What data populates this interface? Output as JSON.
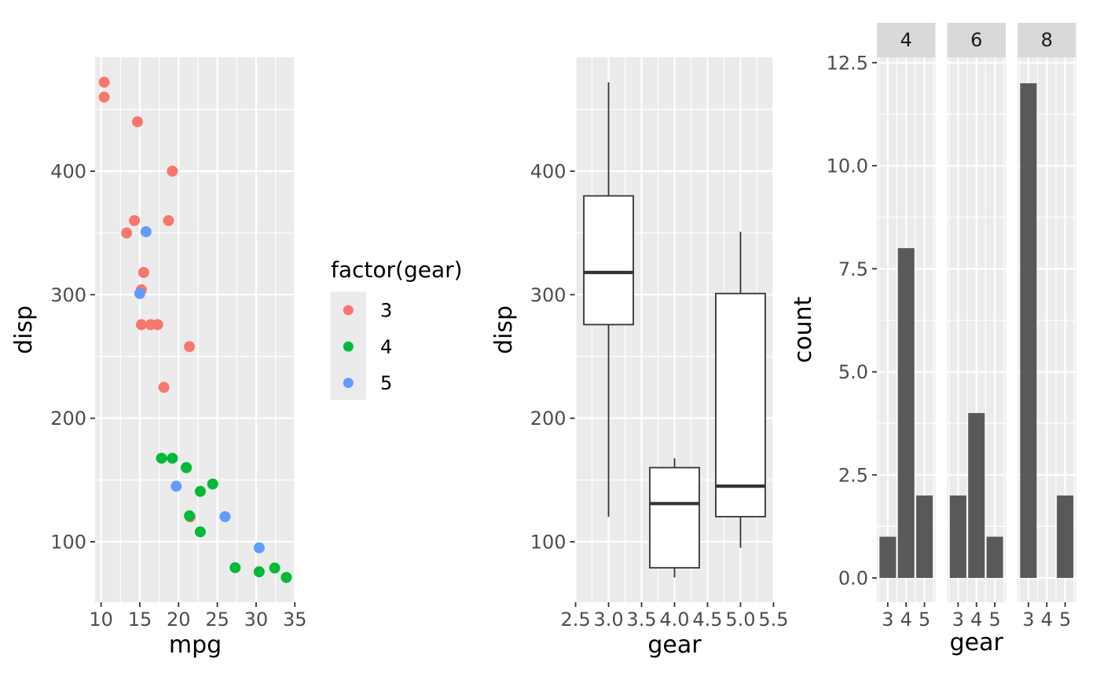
{
  "theme": {
    "panel_bg": "#EBEBEB",
    "grid_color": "#FFFFFF",
    "strip_bg": "#D9D9D9",
    "strip_text_color": "#1A1A1A",
    "tick_label_color": "#4D4D4D",
    "tick_mark_color": "#333333",
    "axis_title_color": "#000000",
    "box_stroke_color": "#333333",
    "box_fill": "#FFFFFF",
    "bar_fill": "#595959",
    "legend_text_color": "#000000",
    "gear_colors": {
      "3": "#F8766D",
      "4": "#00BA38",
      "5": "#619CFF"
    }
  },
  "chart_data": [
    {
      "type": "scatter",
      "title": "",
      "xlabel": "mpg",
      "ylabel": "disp",
      "xlim": [
        9.225,
        35.075
      ],
      "ylim": [
        51.0,
        492.2
      ],
      "x_ticks": [
        10,
        15,
        20,
        25,
        30,
        35
      ],
      "x_tick_labels": [
        "10",
        "15",
        "20",
        "25",
        "30",
        "35"
      ],
      "x_minor_ticks": [
        12.5,
        17.5,
        22.5,
        27.5,
        32.5
      ],
      "y_ticks": [
        100,
        200,
        300,
        400
      ],
      "y_tick_labels": [
        "100",
        "200",
        "300",
        "400"
      ],
      "y_minor_ticks": [
        150,
        250,
        350,
        450
      ],
      "grid": true,
      "legend": {
        "title": "factor(gear)",
        "position": "right",
        "entries": [
          {
            "label": "3",
            "color": "#F8766D"
          },
          {
            "label": "4",
            "color": "#00BA38"
          },
          {
            "label": "5",
            "color": "#619CFF"
          }
        ]
      },
      "series": [
        {
          "name": "3",
          "color": "#F8766D",
          "points": [
            [
              21.4,
              258
            ],
            [
              18.7,
              360
            ],
            [
              18.1,
              225
            ],
            [
              14.3,
              360
            ],
            [
              16.4,
              275.8
            ],
            [
              17.3,
              275.8
            ],
            [
              15.2,
              275.8
            ],
            [
              10.4,
              472
            ],
            [
              10.4,
              460
            ],
            [
              14.7,
              440
            ],
            [
              21.5,
              120.1
            ],
            [
              15.5,
              318
            ],
            [
              15.2,
              304
            ],
            [
              13.3,
              350
            ],
            [
              19.2,
              400
            ]
          ]
        },
        {
          "name": "4",
          "color": "#00BA38",
          "points": [
            [
              21.0,
              160
            ],
            [
              21.0,
              160
            ],
            [
              22.8,
              108
            ],
            [
              24.4,
              146.7
            ],
            [
              22.8,
              140.8
            ],
            [
              19.2,
              167.6
            ],
            [
              17.8,
              167.6
            ],
            [
              32.4,
              78.7
            ],
            [
              30.4,
              75.7
            ],
            [
              33.9,
              71.1
            ],
            [
              27.3,
              79
            ],
            [
              21.4,
              121
            ]
          ]
        },
        {
          "name": "5",
          "color": "#619CFF",
          "points": [
            [
              26.0,
              120.3
            ],
            [
              30.4,
              95.1
            ],
            [
              15.8,
              351
            ],
            [
              19.7,
              145
            ],
            [
              15.0,
              301
            ]
          ]
        }
      ]
    },
    {
      "type": "boxplot",
      "title": "",
      "xlabel": "gear",
      "ylabel": "disp",
      "xlim": [
        2.4875,
        5.5125
      ],
      "ylim": [
        51.0,
        492.2
      ],
      "x_ticks": [
        2.5,
        3.0,
        3.5,
        4.0,
        4.5,
        5.0,
        5.5
      ],
      "x_tick_labels": [
        "2.5",
        "3.0",
        "3.5",
        "4.0",
        "4.5",
        "5.0",
        "5.5"
      ],
      "x_minor_ticks": [
        2.75,
        3.25,
        3.75,
        4.25,
        4.75,
        5.25
      ],
      "y_ticks": [
        100,
        200,
        300,
        400
      ],
      "y_tick_labels": [
        "100",
        "200",
        "300",
        "400"
      ],
      "y_minor_ticks": [
        150,
        250,
        350,
        450
      ],
      "grid": true,
      "box_width": 0.75,
      "boxes": [
        {
          "x": 3,
          "whisker_low": 120.1,
          "q1": 275.8,
          "median": 318,
          "q3": 380,
          "whisker_high": 472
        },
        {
          "x": 4,
          "whisker_low": 71.1,
          "q1": 78.9,
          "median": 130.9,
          "q3": 160,
          "whisker_high": 167.6
        },
        {
          "x": 5,
          "whisker_low": 95.1,
          "q1": 120.3,
          "median": 145,
          "q3": 301,
          "whisker_high": 351
        }
      ]
    },
    {
      "type": "bar",
      "title": "",
      "xlabel": "gear",
      "ylabel": "count",
      "facet_labels": [
        "4",
        "6",
        "8"
      ],
      "xlim": [
        2.405,
        5.595
      ],
      "ylim": [
        -0.59,
        12.63
      ],
      "x_ticks": [
        3,
        4,
        5
      ],
      "x_tick_labels": [
        "3",
        "4",
        "5"
      ],
      "x_minor_ticks": [
        2.5,
        3.5,
        4.5,
        5.5
      ],
      "y_ticks": [
        0,
        2.5,
        5,
        7.5,
        10,
        12.5
      ],
      "y_tick_labels": [
        "0.0",
        "2.5",
        "5.0",
        "7.5",
        "10.0",
        "12.5"
      ],
      "y_minor_ticks": [
        1.25,
        3.75,
        6.25,
        8.75,
        11.25
      ],
      "grid": true,
      "bar_width": 0.9,
      "facets": [
        {
          "label": "4",
          "bars": [
            {
              "x": 3,
              "count": 1
            },
            {
              "x": 4,
              "count": 8
            },
            {
              "x": 5,
              "count": 2
            }
          ]
        },
        {
          "label": "6",
          "bars": [
            {
              "x": 3,
              "count": 2
            },
            {
              "x": 4,
              "count": 4
            },
            {
              "x": 5,
              "count": 1
            }
          ]
        },
        {
          "label": "8",
          "bars": [
            {
              "x": 3,
              "count": 12
            },
            {
              "x": 4,
              "count": 0
            },
            {
              "x": 5,
              "count": 2
            }
          ]
        }
      ]
    }
  ]
}
